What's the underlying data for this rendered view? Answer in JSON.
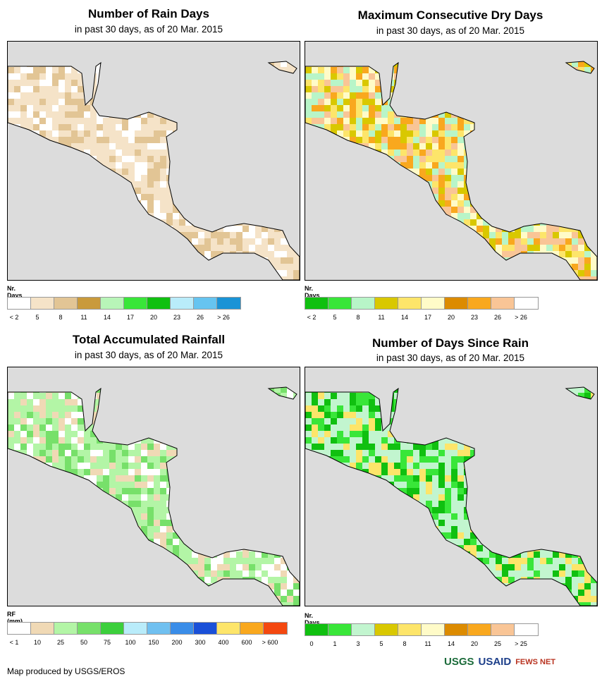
{
  "panels": [
    {
      "title": "Number of Rain Days",
      "subtitle": "in past 30 days, as of 20 Mar. 2015",
      "legend_title": "Nr. Days",
      "legend_colors": [
        "#ffffff",
        "#f5e3c8",
        "#e2c595",
        "#c99a3c",
        "#b8f5b8",
        "#39e639",
        "#10c010",
        "#b9ecfa",
        "#66c4f0",
        "#1a93d6"
      ],
      "legend_labels": [
        "< 2",
        "5",
        "8",
        "11",
        "14",
        "17",
        "20",
        "23",
        "26",
        "> 26"
      ],
      "map_palette": [
        "#ffffff",
        "#f5e3c8",
        "#e2c595",
        "#f5e3c8"
      ]
    },
    {
      "title": "Maximum Consecutive Dry Days",
      "subtitle": "in past 30 days, as of 20 Mar. 2015",
      "legend_title": "Nr. Days",
      "legend_colors": [
        "#10c010",
        "#39e639",
        "#b8f5c8",
        "#d9c800",
        "#fde56a",
        "#fffbc8",
        "#dc8b00",
        "#f9a81e",
        "#f9c596",
        "#ffffff"
      ],
      "legend_labels": [
        "< 2",
        "5",
        "8",
        "11",
        "14",
        "17",
        "20",
        "23",
        "26",
        "> 26"
      ],
      "map_palette": [
        "#f9c596",
        "#f9a81e",
        "#fde56a",
        "#fffbc8",
        "#d9c800",
        "#b8f5c8"
      ]
    },
    {
      "title": "Total Accumulated Rainfall",
      "subtitle": "in past 30 days, as of 20 Mar. 2015",
      "legend_title": "RF (mm)",
      "legend_colors": [
        "#ffffff",
        "#f0d9b5",
        "#b3f5a6",
        "#77e06a",
        "#3ccf3c",
        "#b9ecfa",
        "#70c0f0",
        "#3a8de8",
        "#1a50d8",
        "#fde56a",
        "#f9a81e",
        "#f44810"
      ],
      "legend_labels": [
        "< 1",
        "10",
        "25",
        "50",
        "75",
        "100",
        "150",
        "200",
        "300",
        "400",
        "600",
        "> 600"
      ],
      "map_palette": [
        "#b3f5a6",
        "#77e06a",
        "#f0d9b5",
        "#b3f5a6",
        "#ffffff"
      ]
    },
    {
      "title": "Number of Days Since Rain",
      "subtitle": "in past 30 days, as of 20 Mar. 2015",
      "legend_title": "Nr. Days",
      "legend_colors": [
        "#10c010",
        "#39e639",
        "#c2f5cf",
        "#d9c800",
        "#fde56a",
        "#fffbc8",
        "#dc8b00",
        "#f9a81e",
        "#f9c596",
        "#ffffff"
      ],
      "legend_labels": [
        "0",
        "1",
        "3",
        "5",
        "8",
        "11",
        "14",
        "20",
        "25",
        "> 25"
      ],
      "map_palette": [
        "#c2f5cf",
        "#39e639",
        "#c2f5cf",
        "#10c010",
        "#fde56a"
      ]
    }
  ],
  "footer": "Map produced by USGS/EROS",
  "logos": [
    "USGS",
    "USAID",
    "FEWS NET"
  ]
}
